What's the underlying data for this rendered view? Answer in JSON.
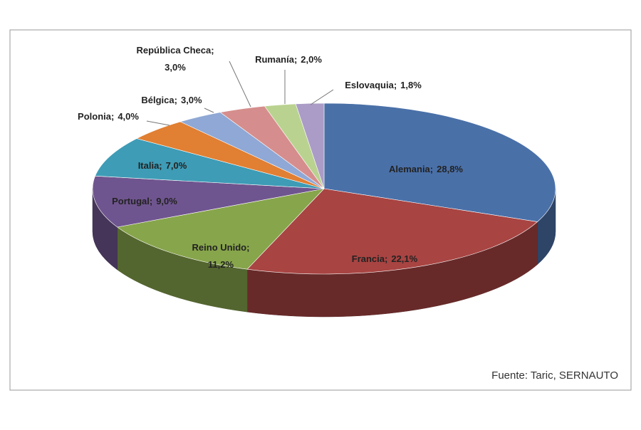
{
  "chart_data": {
    "type": "pie",
    "categories": [
      "Alemania;",
      "Francia;",
      "Reino Unido;",
      "Portugal;",
      "Italia;",
      "Polonia;",
      "Bélgica;",
      "República Checa;",
      "Rumanía;",
      "Eslovaquia;"
    ],
    "values": [
      28.8,
      22.1,
      11.2,
      9.0,
      7.0,
      4.0,
      3.0,
      3.0,
      2.0,
      1.8
    ],
    "value_labels": [
      "28,8%",
      "22,1%",
      "11,2%",
      "9,0%",
      "7,0%",
      "4,0%",
      "3,0%",
      "3,0%",
      "2,0%",
      "1,8%"
    ],
    "colors": [
      "#4a70a8",
      "#a84442",
      "#87a54b",
      "#6f558f",
      "#3e9cb6",
      "#e17f33",
      "#8fa8d5",
      "#d58e8d",
      "#bad290",
      "#aa9cc6"
    ],
    "source": "Fuente: Taric, SERNAUTO"
  }
}
